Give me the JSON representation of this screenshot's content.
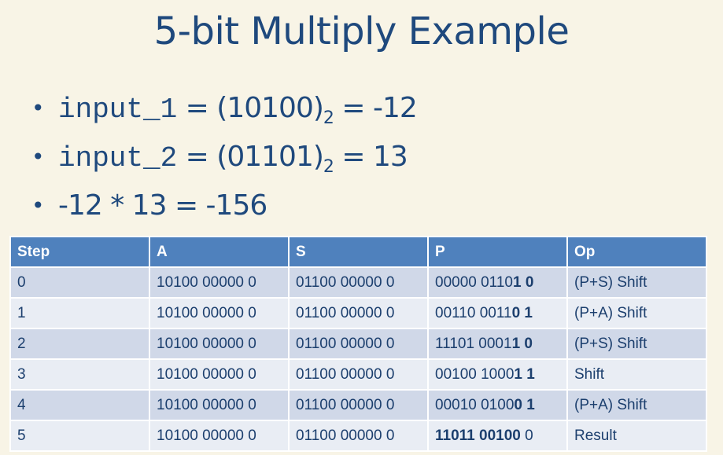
{
  "title": "5-bit Multiply Example",
  "bullets": [
    {
      "code": "input_1",
      "eq": " = (10100)",
      "sub": "2",
      "rest": " = -12"
    },
    {
      "code": "input_2",
      "eq": " = (01101)",
      "sub": "2",
      "rest": " = 13"
    },
    {
      "code": "",
      "eq": "-12 * 13 = -156",
      "sub": "",
      "rest": ""
    }
  ],
  "table": {
    "headers": [
      "Step",
      "A",
      "S",
      "P",
      "Op"
    ],
    "rows": [
      {
        "step": "0",
        "a": "10100 00000 0",
        "s": "01100 00000 0",
        "p": [
          {
            "text": "00000 0110",
            "bold": false
          },
          {
            "text": "1 0",
            "bold": true
          }
        ],
        "op": "(P+S) Shift"
      },
      {
        "step": "1",
        "a": "10100 00000 0",
        "s": "01100 00000 0",
        "p": [
          {
            "text": "00110 0011",
            "bold": false
          },
          {
            "text": "0 1",
            "bold": true
          }
        ],
        "op": "(P+A) Shift"
      },
      {
        "step": "2",
        "a": "10100 00000 0",
        "s": "01100 00000 0",
        "p": [
          {
            "text": "11101 0001",
            "bold": false
          },
          {
            "text": "1 0",
            "bold": true
          }
        ],
        "op": "(P+S) Shift"
      },
      {
        "step": "3",
        "a": "10100 00000 0",
        "s": "01100 00000 0",
        "p": [
          {
            "text": "00100 1000",
            "bold": false
          },
          {
            "text": "1 1",
            "bold": true
          }
        ],
        "op": "Shift"
      },
      {
        "step": "4",
        "a": "10100 00000 0",
        "s": "01100 00000 0",
        "p": [
          {
            "text": "00010 0100",
            "bold": false
          },
          {
            "text": "0 1",
            "bold": true
          }
        ],
        "op": "(P+A) Shift"
      },
      {
        "step": "5",
        "a": "10100 00000 0",
        "s": "01100 00000 0",
        "p": [
          {
            "text": "11011 00100",
            "bold": true
          },
          {
            "text": " 0",
            "bold": false
          }
        ],
        "op": "Result"
      }
    ]
  },
  "colors": {
    "header": "#4f81bd",
    "row_odd": "#d0d8e8",
    "row_even": "#e9edf4",
    "background": "#f8f4e6",
    "text": "#1f497d"
  }
}
